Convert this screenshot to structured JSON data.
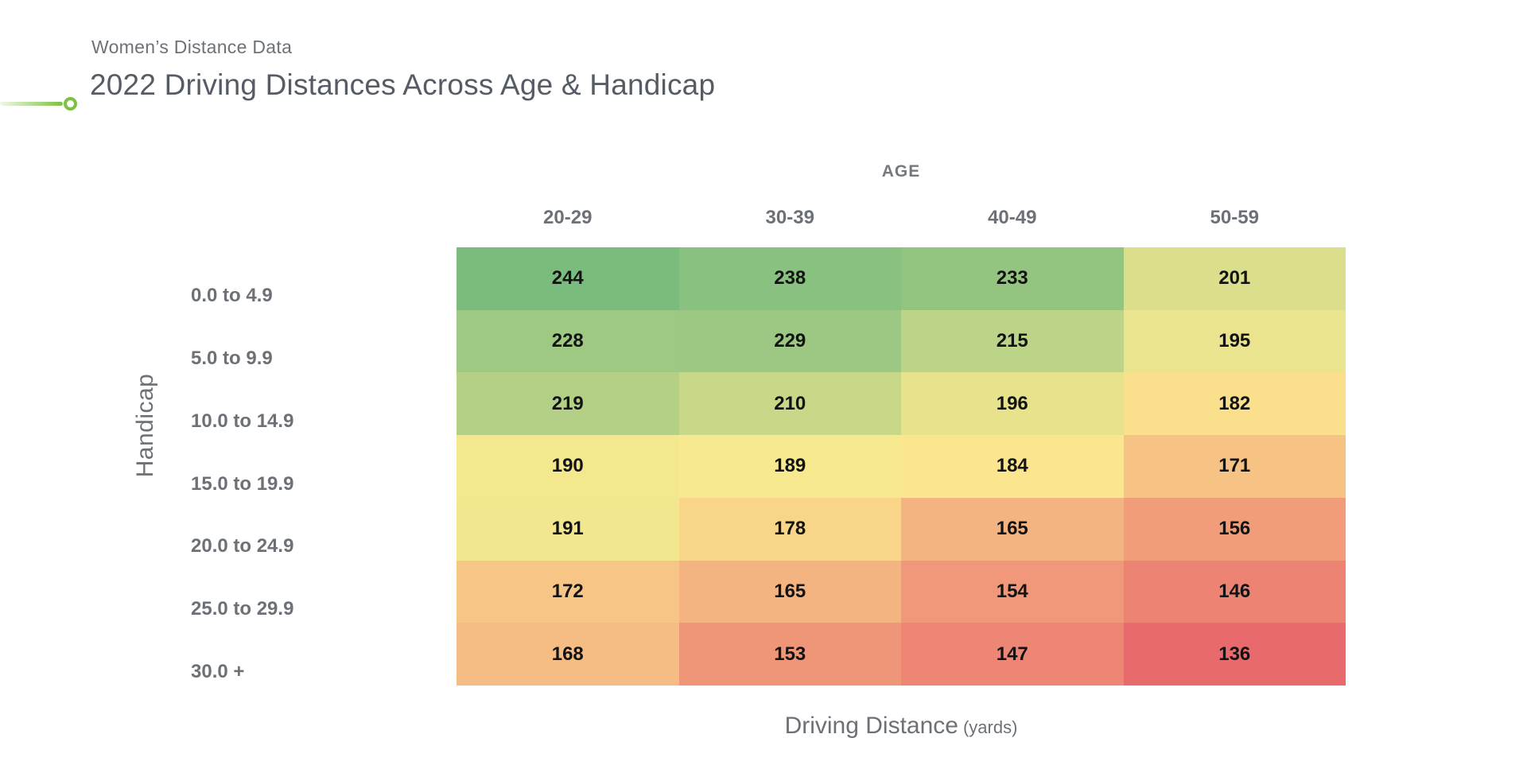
{
  "header": {
    "kicker": "Women’s Distance Data",
    "title": "2022 Driving Distances Across Age & Handicap"
  },
  "chart_data": {
    "type": "heatmap",
    "title": "2022 Driving Distances Across Age & Handicap",
    "subtitle": "Women’s Distance Data",
    "x_axis_label": "AGE",
    "y_axis_label": "Handicap",
    "columns": [
      "20-29",
      "30-39",
      "40-49",
      "50-59"
    ],
    "rows": [
      "0.0 to 4.9",
      "5.0 to 9.9",
      "10.0 to 14.9",
      "15.0 to 19.9",
      "20.0 to 24.9",
      "25.0 to 29.9",
      "30.0 +"
    ],
    "values": [
      [
        244,
        238,
        233,
        201
      ],
      [
        228,
        229,
        215,
        195
      ],
      [
        219,
        210,
        196,
        182
      ],
      [
        190,
        189,
        184,
        171
      ],
      [
        191,
        178,
        165,
        156
      ],
      [
        172,
        165,
        154,
        146
      ],
      [
        168,
        153,
        147,
        136
      ]
    ],
    "value_label": "Driving Distance",
    "value_unit": "(yards)",
    "colorscale": {
      "min": {
        "value": 136,
        "color": "#E96A6C"
      },
      "mid": {
        "value": 186.5,
        "color": "#FCEB90"
      },
      "max": {
        "value": 244,
        "color": "#7ABC7E"
      }
    },
    "legend": "none",
    "grid": "off"
  },
  "colors": {
    "accent_green": "#7DC142",
    "title_text": "#565C66",
    "label_gray": "#6C7177",
    "cell_text": "#131313"
  }
}
